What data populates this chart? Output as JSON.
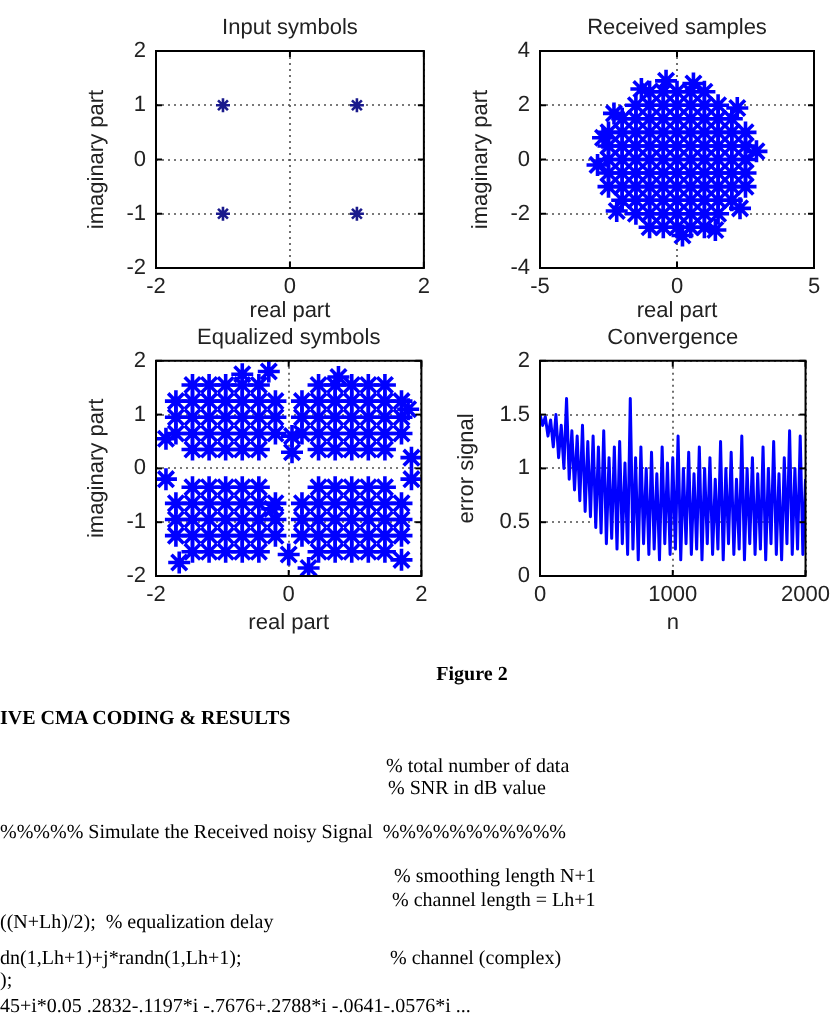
{
  "chart_data": [
    {
      "type": "scatter",
      "title": "Input symbols",
      "xlabel": "real part",
      "ylabel": "imaginary part",
      "xlim": [
        -2,
        2
      ],
      "ylim": [
        -2,
        2
      ],
      "xticks": [
        -2,
        0,
        2
      ],
      "yticks": [
        -2,
        -1,
        0,
        1,
        2
      ],
      "grid": true,
      "marker": "cross",
      "series": [
        {
          "color": "#1a1a8c",
          "x": [
            -1,
            1,
            -1,
            1
          ],
          "values": [
            1,
            1,
            -1,
            -1
          ]
        }
      ]
    },
    {
      "type": "scatter",
      "title": "Received samples",
      "xlabel": "real part",
      "ylabel": "imaginary part",
      "xlim": [
        -5,
        5
      ],
      "ylim": [
        -4,
        4
      ],
      "xticks": [
        -5,
        0,
        5
      ],
      "yticks": [
        -4,
        -2,
        0,
        2,
        4
      ],
      "grid": true,
      "marker": "cross",
      "series": [
        {
          "color": "#0000ff",
          "x": [
            -1,
            -0.5,
            0,
            0.5,
            1,
            -1.5,
            -1,
            -0.5,
            0,
            0.5,
            1,
            1.5,
            -2,
            -1.5,
            -1,
            -0.5,
            0,
            0.5,
            1,
            1.5,
            2,
            -2.5,
            -2,
            -1.5,
            -1,
            -0.5,
            0,
            0.5,
            1,
            1.5,
            2,
            2.5,
            -2.5,
            -2,
            -1.5,
            -1,
            -0.5,
            0,
            0.5,
            1,
            1.5,
            2,
            2.5,
            -2.5,
            -2,
            -1.5,
            -1,
            -0.5,
            0,
            0.5,
            1,
            1.5,
            2,
            2.5,
            -2.5,
            -2,
            -1.5,
            -1,
            -0.5,
            0,
            0.5,
            1,
            1.5,
            2,
            2.5,
            -2.5,
            -2,
            -1.5,
            -1,
            -0.5,
            0,
            0.5,
            1,
            1.5,
            2,
            2.5,
            -2,
            -1.5,
            -1,
            -0.5,
            0,
            0.5,
            1,
            1.5,
            2,
            -1.5,
            -1,
            -0.5,
            0,
            0.5,
            1,
            1.5,
            -1,
            -0.5,
            0,
            0.5,
            1,
            -0.4,
            0.6,
            -2.9,
            2.9,
            -2.3,
            2.2,
            -2.2,
            2.3,
            0.2,
            -1.3,
            1.4,
            -2.7
          ],
          "values": [
            2.5,
            2.5,
            2.5,
            2.5,
            2.5,
            2,
            2,
            2,
            2,
            2,
            2,
            2,
            1.5,
            1.5,
            1.5,
            1.5,
            1.5,
            1.5,
            1.5,
            1.5,
            1.5,
            1,
            1,
            1,
            1,
            1,
            1,
            1,
            1,
            1,
            1,
            1,
            0.5,
            0.5,
            0.5,
            0.5,
            0.5,
            0.5,
            0.5,
            0.5,
            0.5,
            0.5,
            0.5,
            0,
            0,
            0,
            0,
            0,
            0,
            0,
            0,
            0,
            0,
            0,
            -0.5,
            -0.5,
            -0.5,
            -0.5,
            -0.5,
            -0.5,
            -0.5,
            -0.5,
            -0.5,
            -0.5,
            -0.5,
            -1,
            -1,
            -1,
            -1,
            -1,
            -1,
            -1,
            -1,
            -1,
            -1,
            -1,
            -1.5,
            -1.5,
            -1.5,
            -1.5,
            -1.5,
            -1.5,
            -1.5,
            -1.5,
            -1.5,
            -2,
            -2,
            -2,
            -2,
            -2,
            -2,
            -2,
            -2.5,
            -2.5,
            -2.5,
            -2.5,
            -2.5,
            2.9,
            2.8,
            -0.2,
            0.3,
            1.7,
            1.9,
            -1.9,
            -1.8,
            -2.8,
            2.6,
            -2.6,
            0.8
          ]
        }
      ]
    },
    {
      "type": "scatter",
      "title": "Equalized symbols",
      "xlabel": "real part",
      "ylabel": "imaginary part",
      "xlim": [
        -2,
        2
      ],
      "ylim": [
        -2,
        2
      ],
      "xticks": [
        -2,
        0,
        2
      ],
      "yticks": [
        -2,
        -1,
        0,
        1,
        2
      ],
      "grid": true,
      "marker": "cross",
      "series": [
        {
          "color": "#0000ff",
          "x": [
            -1.45,
            -1.2,
            -0.95,
            -0.7,
            -0.45,
            -1.7,
            -1.45,
            -1.2,
            -0.95,
            -0.7,
            -0.45,
            -0.2,
            -1.7,
            -1.45,
            -1.2,
            -0.95,
            -0.7,
            -0.45,
            -0.2,
            -1.7,
            -1.45,
            -1.2,
            -0.95,
            -0.7,
            -0.45,
            -0.2,
            -1.45,
            -1.2,
            -0.95,
            -0.7,
            -0.45,
            0.45,
            0.7,
            0.95,
            1.2,
            1.45,
            0.2,
            0.45,
            0.7,
            0.95,
            1.2,
            1.45,
            1.7,
            0.2,
            0.45,
            0.7,
            0.95,
            1.2,
            1.45,
            1.7,
            0.2,
            0.45,
            0.7,
            0.95,
            1.2,
            1.45,
            1.7,
            0.45,
            0.7,
            0.95,
            1.2,
            1.45,
            -1.45,
            -1.2,
            -0.95,
            -0.7,
            -0.45,
            -1.7,
            -1.45,
            -1.2,
            -0.95,
            -0.7,
            -0.45,
            -0.2,
            -1.7,
            -1.45,
            -1.2,
            -0.95,
            -0.7,
            -0.45,
            -0.2,
            -1.7,
            -1.45,
            -1.2,
            -0.95,
            -0.7,
            -0.45,
            -0.2,
            -1.45,
            -1.2,
            -0.95,
            -0.7,
            -0.45,
            0.45,
            0.7,
            0.95,
            1.2,
            1.45,
            0.2,
            0.45,
            0.7,
            0.95,
            1.2,
            1.45,
            1.7,
            0.2,
            0.45,
            0.7,
            0.95,
            1.2,
            1.45,
            1.7,
            0.2,
            0.45,
            0.7,
            0.95,
            1.2,
            1.45,
            1.7,
            0.45,
            0.7,
            0.95,
            1.2,
            1.45,
            -0.7,
            0.75,
            -1.85,
            1.85,
            0.05,
            0.05,
            -0.25,
            1.85,
            -1.65,
            1.7,
            0,
            1.8,
            -1.85,
            -0.3,
            0.3
          ],
          "values": [
            1.55,
            1.55,
            1.55,
            1.55,
            1.55,
            1.25,
            1.25,
            1.25,
            1.25,
            1.25,
            1.25,
            1.25,
            0.95,
            0.95,
            0.95,
            0.95,
            0.95,
            0.95,
            0.95,
            0.65,
            0.65,
            0.65,
            0.65,
            0.65,
            0.65,
            0.65,
            0.35,
            0.35,
            0.35,
            0.35,
            0.35,
            1.55,
            1.55,
            1.55,
            1.55,
            1.55,
            1.25,
            1.25,
            1.25,
            1.25,
            1.25,
            1.25,
            1.25,
            0.95,
            0.95,
            0.95,
            0.95,
            0.95,
            0.95,
            0.95,
            0.65,
            0.65,
            0.65,
            0.65,
            0.65,
            0.65,
            0.65,
            0.35,
            0.35,
            0.35,
            0.35,
            0.35,
            -0.35,
            -0.35,
            -0.35,
            -0.35,
            -0.35,
            -0.65,
            -0.65,
            -0.65,
            -0.65,
            -0.65,
            -0.65,
            -0.65,
            -0.95,
            -0.95,
            -0.95,
            -0.95,
            -0.95,
            -0.95,
            -0.95,
            -1.25,
            -1.25,
            -1.25,
            -1.25,
            -1.25,
            -1.25,
            -1.25,
            -1.55,
            -1.55,
            -1.55,
            -1.55,
            -1.55,
            -0.35,
            -0.35,
            -0.35,
            -0.35,
            -0.35,
            -0.65,
            -0.65,
            -0.65,
            -0.65,
            -0.65,
            -0.65,
            -0.65,
            -0.95,
            -0.95,
            -0.95,
            -0.95,
            -0.95,
            -0.95,
            -0.95,
            -1.25,
            -1.25,
            -1.25,
            -1.25,
            -1.25,
            -1.25,
            -1.25,
            -1.55,
            -1.55,
            -1.55,
            -1.55,
            -1.55,
            1.75,
            1.7,
            0.55,
            0.2,
            0.6,
            0.3,
            -0.75,
            -0.2,
            -1.75,
            -1.7,
            -1.6,
            1.1,
            -0.2,
            1.8,
            -1.85
          ]
        }
      ]
    },
    {
      "type": "line",
      "title": "Convergence",
      "xlabel": "n",
      "ylabel": "error signal",
      "xlim": [
        0,
        2000
      ],
      "ylim": [
        0,
        2
      ],
      "xticks": [
        0,
        1000,
        2000
      ],
      "yticks": [
        0,
        0.5,
        1,
        1.5,
        2
      ],
      "grid": true,
      "series": [
        {
          "color": "#0000ff",
          "x": [
            0,
            20,
            40,
            60,
            80,
            100,
            120,
            140,
            160,
            180,
            200,
            220,
            240,
            260,
            280,
            300,
            320,
            340,
            360,
            380,
            400,
            420,
            440,
            460,
            480,
            500,
            520,
            540,
            560,
            580,
            600,
            620,
            640,
            660,
            680,
            700,
            720,
            740,
            760,
            780,
            800,
            820,
            840,
            860,
            880,
            900,
            920,
            940,
            960,
            980,
            1000,
            1020,
            1040,
            1060,
            1080,
            1100,
            1120,
            1140,
            1160,
            1180,
            1200,
            1220,
            1240,
            1260,
            1280,
            1300,
            1320,
            1340,
            1360,
            1380,
            1400,
            1420,
            1440,
            1460,
            1480,
            1500,
            1520,
            1540,
            1560,
            1580,
            1600,
            1620,
            1640,
            1660,
            1680,
            1700,
            1720,
            1740,
            1760,
            1780,
            1800,
            1820,
            1840,
            1860,
            1880,
            1900,
            1920,
            1940,
            1960,
            1980,
            2000
          ],
          "values": [
            1.5,
            1.4,
            1.48,
            1.3,
            1.45,
            1.2,
            1.5,
            1.1,
            1.4,
            1.0,
            1.65,
            0.9,
            1.35,
            0.8,
            1.3,
            0.7,
            1.4,
            0.6,
            1.25,
            0.55,
            1.3,
            0.45,
            1.2,
            0.4,
            1.35,
            0.3,
            1.1,
            0.35,
            1.2,
            0.25,
            1.25,
            0.3,
            1.05,
            0.2,
            1.65,
            0.25,
            1.1,
            0.15,
            1.2,
            0.3,
            1.0,
            0.2,
            1.15,
            0.25,
            0.95,
            0.15,
            1.2,
            0.3,
            1.05,
            0.2,
            1.1,
            0.25,
            1.3,
            0.15,
            1.0,
            0.3,
            1.15,
            0.2,
            0.95,
            0.25,
            1.2,
            0.15,
            1.0,
            0.3,
            1.1,
            0.2,
            0.9,
            0.25,
            1.25,
            0.15,
            1.0,
            0.3,
            1.15,
            0.2,
            0.9,
            0.25,
            1.3,
            0.15,
            1.0,
            0.3,
            1.1,
            0.2,
            0.95,
            0.25,
            1.2,
            0.15,
            1.0,
            0.3,
            1.25,
            0.2,
            0.95,
            0.15,
            1.1,
            0.3,
            1.35,
            0.2,
            1.0,
            0.25,
            1.3,
            0.2,
            0.9
          ]
        }
      ]
    },
    {
      "type": "other",
      "title": "Figure 2",
      "subtitle": "IVE CMA CODING & RESULTS",
      "annotations": [
        "% total number of data",
        "% SNR in dB value",
        "%%%%% Simulate the Received noisy Signal  %%%%%%%%%%%",
        "% smoothing length N+1",
        "% channel length = Lh+1",
        "((N+Lh)/2);  % equalization delay",
        "dn(1,Lh+1)+j*randn(1,Lh+1);",
        "% channel (complex)",
        ");",
        "45+i*0.05 .2832-.1197*i -.7676+.2788*i -.0641-.0576*i ..."
      ]
    }
  ]
}
